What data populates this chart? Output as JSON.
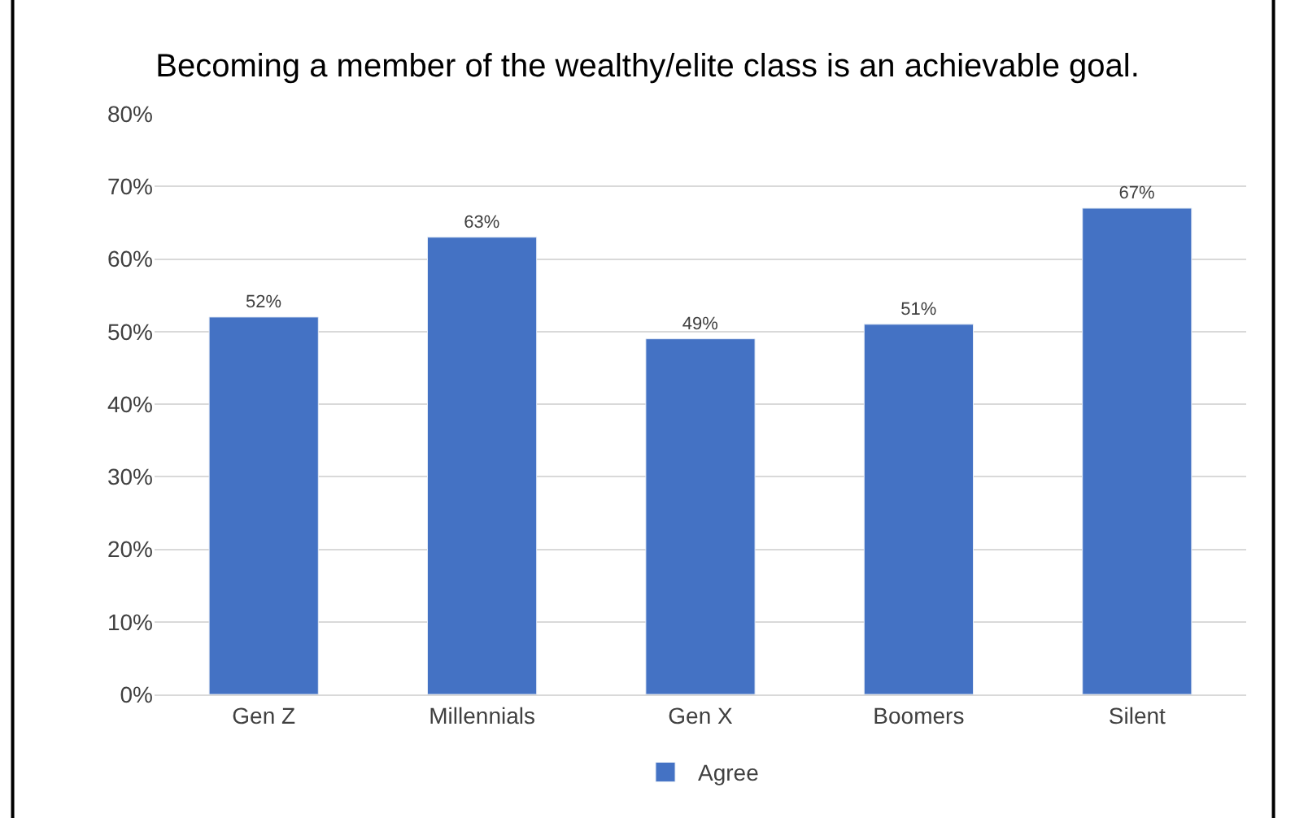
{
  "chart_data": {
    "type": "bar",
    "title": "Becoming a member of the wealthy/elite class is an achievable goal.",
    "categories": [
      "Gen Z",
      "Millennials",
      "Gen X",
      "Boomers",
      "Silent"
    ],
    "series": [
      {
        "name": "Agree",
        "color": "#4472c4",
        "values": [
          52,
          63,
          49,
          51,
          67
        ],
        "value_labels": [
          "52%",
          "63%",
          "49%",
          "51%",
          "67%"
        ]
      }
    ],
    "ylim": [
      0,
      80
    ],
    "yticks": [
      {
        "value": 0,
        "label": "0%"
      },
      {
        "value": 10,
        "label": "10%"
      },
      {
        "value": 20,
        "label": "20%"
      },
      {
        "value": 30,
        "label": "30%"
      },
      {
        "value": 40,
        "label": "40%"
      },
      {
        "value": 50,
        "label": "50%"
      },
      {
        "value": 60,
        "label": "60%"
      },
      {
        "value": 70,
        "label": "70%"
      },
      {
        "value": 80,
        "label": "80%"
      }
    ],
    "grid": "y",
    "legend": "bottom"
  }
}
